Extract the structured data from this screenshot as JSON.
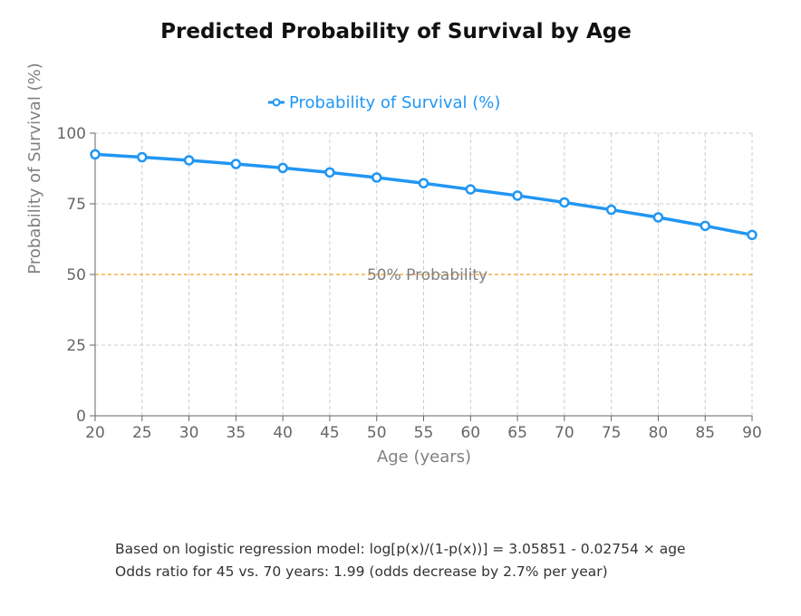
{
  "chart_data": {
    "type": "line",
    "title": "Predicted Probability of Survival by Age",
    "xlabel": "Age (years)",
    "ylabel": "Probability of Survival (%)",
    "xlim": [
      20,
      90
    ],
    "ylim": [
      0,
      100
    ],
    "x_ticks": [
      "20",
      "25",
      "30",
      "35",
      "40",
      "45",
      "50",
      "55",
      "60",
      "65",
      "70",
      "75",
      "80",
      "85",
      "90"
    ],
    "y_ticks": [
      "0",
      "25",
      "50",
      "75",
      "100"
    ],
    "grid": true,
    "legend_position": "top-center",
    "series": [
      {
        "name": "Probability of Survival (%)",
        "color": "#2196f3",
        "x": [
          20,
          25,
          30,
          35,
          40,
          45,
          50,
          55,
          60,
          65,
          70,
          75,
          80,
          85,
          90
        ],
        "values": [
          92.5,
          91.5,
          90.4,
          89.1,
          87.7,
          86.1,
          84.3,
          82.3,
          80.1,
          77.9,
          75.5,
          72.9,
          70.2,
          67.2,
          64.0
        ]
      }
    ],
    "reference_line": {
      "y": 50,
      "label": "50% Probability",
      "color": "#f0a020"
    }
  },
  "notes": {
    "line1": "Based on logistic regression model: log[p(x)/(1-p(x))] = 3.05851 - 0.02754 × age",
    "line2": "Odds ratio for 45 vs. 70 years: 1.99 (odds decrease by 2.7% per year)"
  }
}
